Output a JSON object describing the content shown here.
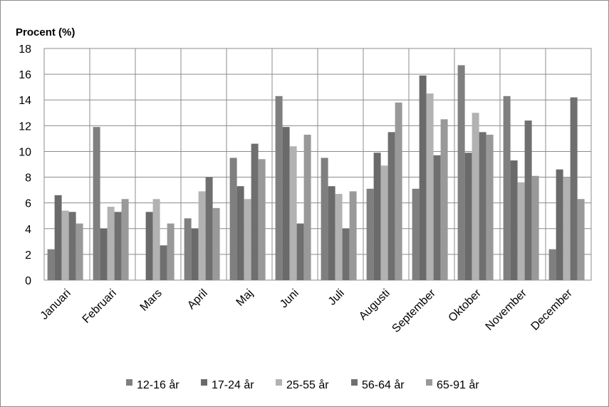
{
  "chart_data": {
    "type": "bar",
    "ylabel": "Procent (%)",
    "ylim": [
      0,
      18
    ],
    "ystep": 2,
    "yticks": [
      "0",
      "2",
      "4",
      "6",
      "8",
      "10",
      "12",
      "14",
      "16",
      "18"
    ],
    "grid": true,
    "legend_position": "bottom",
    "categories": [
      "Januari",
      "Februari",
      "Mars",
      "April",
      "Maj",
      "Juni",
      "Juli",
      "Augusti",
      "September",
      "Oktober",
      "November",
      "December"
    ],
    "series": [
      {
        "name": "12-16 år",
        "color": "#7f7f7f",
        "values": [
          2.4,
          11.9,
          0,
          4.8,
          9.5,
          14.3,
          9.5,
          7.1,
          7.1,
          16.7,
          14.3,
          2.4
        ]
      },
      {
        "name": "17-24 år",
        "color": "#6a6a6a",
        "values": [
          6.6,
          4.0,
          5.3,
          4.0,
          7.3,
          11.9,
          7.3,
          9.9,
          15.9,
          9.9,
          9.3,
          8.6
        ]
      },
      {
        "name": "25-55 år",
        "color": "#b2b2b2",
        "values": [
          5.4,
          5.7,
          6.3,
          6.9,
          6.3,
          10.4,
          6.7,
          8.9,
          14.5,
          13.0,
          7.6,
          8.0
        ]
      },
      {
        "name": "56-64 år",
        "color": "#6f6f6f",
        "values": [
          5.3,
          5.3,
          2.7,
          8.0,
          10.6,
          4.4,
          4.0,
          11.5,
          9.7,
          11.5,
          12.4,
          14.2
        ]
      },
      {
        "name": "65-91 år",
        "color": "#999999",
        "values": [
          4.4,
          6.3,
          4.4,
          5.6,
          9.4,
          11.3,
          6.9,
          13.8,
          12.5,
          11.3,
          8.1,
          6.3
        ]
      }
    ]
  }
}
